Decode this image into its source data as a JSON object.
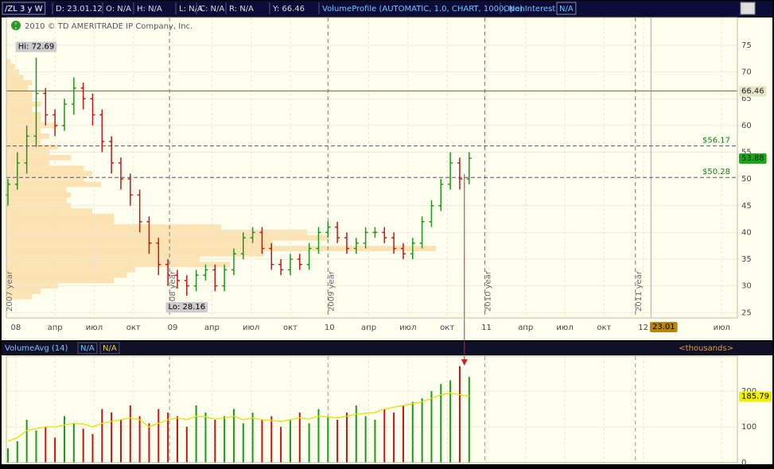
{
  "header": {
    "items": [
      "/ZL 3 y W",
      "D: 23.01.12",
      "O: N/A",
      "H: N/A",
      "L: N/A",
      "C: N/A",
      "R: N/A",
      "Y: 66.46",
      "VolumeProfile (AUTOMATIC, 1.0, CHART, 1000, No)",
      "OpenInterest",
      "N/A"
    ]
  },
  "chart_data": [
    {
      "type": "ohlc",
      "copyright": "2010 © TD AMERITRADE IP Company, Inc.",
      "hi_label": "Hi: 72.69",
      "lo_label": "Lo: 28.16",
      "cursor": {
        "value": 2012.13,
        "label": "23.01"
      },
      "up_color": "#1a9a1a",
      "down_color": "#c81414",
      "x": [
        2007.95,
        2008.01,
        2008.07,
        2008.13,
        2008.19,
        2008.25,
        2008.31,
        2008.37,
        2008.43,
        2008.49,
        2008.55,
        2008.61,
        2008.67,
        2008.73,
        2008.79,
        2008.85,
        2008.91,
        2008.97,
        2009.03,
        2009.09,
        2009.15,
        2009.21,
        2009.27,
        2009.33,
        2009.39,
        2009.45,
        2009.51,
        2009.57,
        2009.63,
        2009.69,
        2009.75,
        2009.81,
        2009.87,
        2009.93,
        2009.99,
        2010.05,
        2010.11,
        2010.17,
        2010.23,
        2010.29,
        2010.35,
        2010.41,
        2010.47,
        2010.53,
        2010.59,
        2010.65,
        2010.71,
        2010.77,
        2010.83,
        2010.89
      ],
      "open": [
        47,
        49,
        53,
        58,
        66,
        62,
        60,
        64,
        67,
        65,
        62,
        57,
        53,
        50,
        47,
        42,
        38,
        34,
        32,
        31,
        30,
        32,
        33,
        30,
        33,
        36,
        39,
        40,
        37,
        34,
        33,
        35,
        34,
        37,
        40,
        41,
        39,
        37,
        38,
        40,
        40,
        39,
        37,
        36,
        38,
        42,
        45,
        49,
        53,
        50
      ],
      "high": [
        50,
        55,
        60,
        72.69,
        67,
        63,
        65,
        69,
        68,
        66,
        63,
        58,
        54,
        51,
        48,
        43,
        39,
        35,
        33,
        32,
        33,
        34,
        34,
        34,
        37,
        40,
        41,
        41,
        38,
        35,
        36,
        36,
        38,
        41,
        42,
        42,
        40,
        39,
        41,
        41,
        41,
        40,
        38,
        39,
        43,
        46,
        50,
        55,
        54,
        55
      ],
      "low": [
        45,
        48,
        51,
        56,
        60,
        58,
        59,
        62,
        63,
        60,
        55,
        51,
        48,
        45,
        40,
        36,
        32,
        30,
        29.5,
        28.16,
        29,
        31,
        29,
        29,
        32,
        35,
        38,
        36,
        33,
        32,
        32,
        33,
        33,
        36,
        39,
        38,
        36,
        36,
        37,
        39,
        38,
        36,
        35,
        35,
        37,
        41,
        44,
        48,
        48,
        49
      ],
      "close": [
        49,
        53,
        58,
        66,
        62,
        60,
        64,
        67,
        65,
        62,
        57,
        53,
        50,
        47,
        42,
        38,
        34,
        32,
        31,
        30,
        32,
        33,
        30,
        33,
        36,
        39,
        40,
        37,
        34,
        33,
        35,
        34,
        37,
        40,
        41,
        39,
        37,
        38,
        40,
        40,
        39,
        37,
        36,
        38,
        42,
        45,
        49,
        53,
        50,
        53.88
      ],
      "xlim": [
        2007.94,
        2012.6
      ],
      "ylim": [
        24,
        80.2
      ],
      "yticks": [
        25,
        30,
        35,
        40,
        45,
        50,
        55,
        60,
        65,
        70,
        75
      ],
      "xticks": [
        {
          "value": 2008,
          "label": "08"
        },
        {
          "value": 2008.25,
          "label": "апр"
        },
        {
          "value": 2008.5,
          "label": "июл"
        },
        {
          "value": 2008.75,
          "label": "окт"
        },
        {
          "value": 2009,
          "label": "09"
        },
        {
          "value": 2009.25,
          "label": "апр"
        },
        {
          "value": 2009.5,
          "label": "июл"
        },
        {
          "value": 2009.75,
          "label": "окт"
        },
        {
          "value": 2010,
          "label": "10"
        },
        {
          "value": 2010.25,
          "label": "апр"
        },
        {
          "value": 2010.5,
          "label": "июл"
        },
        {
          "value": 2010.75,
          "label": "окт"
        },
        {
          "value": 2011,
          "label": "11"
        },
        {
          "value": 2011.25,
          "label": "апр"
        },
        {
          "value": 2011.5,
          "label": "июл"
        },
        {
          "value": 2011.75,
          "label": "окт"
        },
        {
          "value": 2012,
          "label": "12"
        },
        {
          "value": 2012.5,
          "label": "июл"
        }
      ],
      "year_markers": [
        {
          "value": 2007.94,
          "label": "2007 year"
        },
        {
          "value": 2008.98,
          "label": "2008 year"
        },
        {
          "value": 2009.99,
          "label": "2009 year"
        },
        {
          "value": 2010.99,
          "label": "2010 year"
        },
        {
          "value": 2011.95,
          "label": "2011 year"
        }
      ],
      "levels": [
        66.46,
        {
          "value": 56.17,
          "label": "$56.17"
        },
        {
          "value": 50.28,
          "label": "$50.28"
        }
      ],
      "profile": {
        "color": "#fde3b4",
        "xlim": [
          0,
          100
        ],
        "prices": [
          28,
          29,
          30,
          31,
          32,
          33,
          34,
          35,
          36,
          37,
          38,
          39,
          40,
          41,
          42,
          43,
          44,
          45,
          46,
          47,
          48,
          49,
          50,
          51,
          52,
          53,
          54,
          55,
          56,
          57,
          58,
          59,
          60,
          61,
          62,
          63,
          64,
          65,
          66,
          67,
          68,
          69,
          70,
          71,
          72
        ],
        "volumes": [
          6,
          8,
          12,
          25,
          28,
          30,
          52,
          45,
          60,
          100,
          62,
          75,
          70,
          50,
          25,
          25,
          20,
          15,
          14,
          15,
          14,
          22,
          18,
          20,
          18,
          10,
          15,
          10,
          12,
          8,
          10,
          8,
          12,
          8,
          8,
          6,
          8,
          6,
          6,
          5,
          6,
          4,
          3,
          2,
          1
        ]
      }
    },
    {
      "type": "bar",
      "title": "VolumeAvg (14)",
      "status": [
        "N/A",
        "N/A"
      ],
      "units_label": "<thousands>",
      "values": [
        40,
        60,
        120,
        90,
        100,
        70,
        130,
        110,
        95,
        80,
        150,
        140,
        120,
        160,
        130,
        110,
        150,
        140,
        130,
        100,
        160,
        140,
        120,
        130,
        150,
        110,
        140,
        120,
        130,
        100,
        120,
        140,
        110,
        150,
        130,
        120,
        140,
        160,
        130,
        120,
        150,
        140,
        160,
        170,
        180,
        200,
        220,
        230,
        270,
        240
      ],
      "avg": [
        60,
        70,
        90,
        95,
        100,
        100,
        105,
        110,
        108,
        100,
        110,
        115,
        120,
        125,
        120,
        100,
        110,
        120,
        125,
        120,
        130,
        128,
        122,
        125,
        130,
        120,
        125,
        120,
        118,
        115,
        120,
        125,
        122,
        130,
        128,
        125,
        130,
        135,
        138,
        140,
        150,
        155,
        160,
        165,
        170,
        180,
        190,
        195,
        190,
        185.79
      ],
      "avg_color": "#e8e000",
      "ylim": [
        0,
        298
      ],
      "yticks": [
        0,
        100,
        200
      ]
    }
  ]
}
